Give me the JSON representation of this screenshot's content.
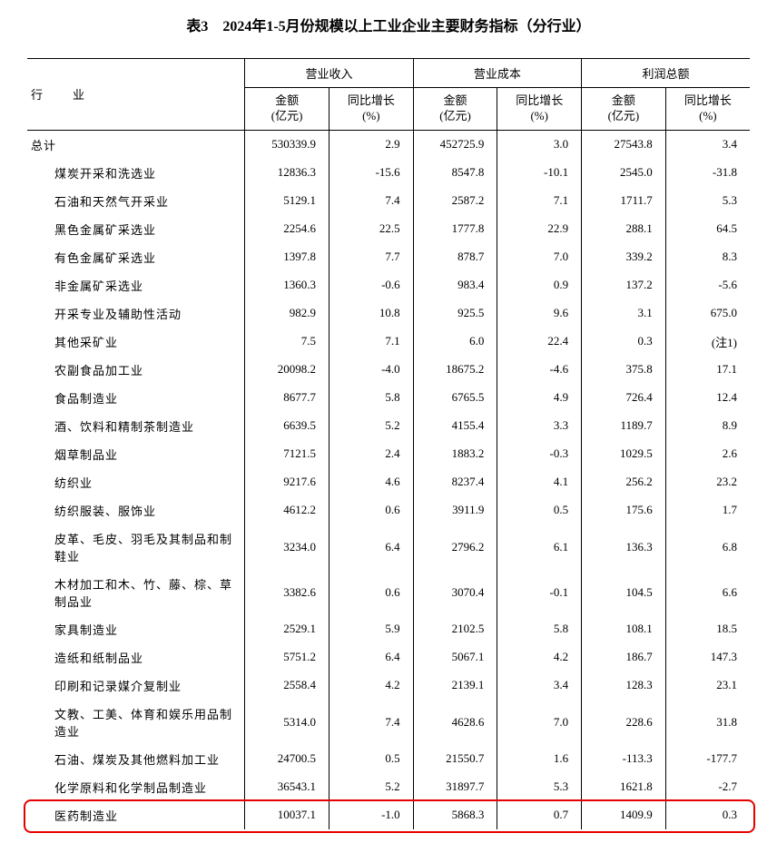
{
  "title": "表3　2024年1-5月份规模以上工业企业主要财务指标（分行业）",
  "header": {
    "industry": "行　业",
    "group1": "营业收入",
    "group2": "营业成本",
    "group3": "利润总额",
    "sub_amount": "金额",
    "sub_amount_unit": "(亿元)",
    "sub_growth": "同比增长",
    "sub_growth_unit": "(%)"
  },
  "rows": [
    {
      "name": "总计",
      "indent": false,
      "r1": "530339.9",
      "r2": "2.9",
      "c1": "452725.9",
      "c2": "3.0",
      "p1": "27543.8",
      "p2": "3.4"
    },
    {
      "name": "煤炭开采和洗选业",
      "indent": true,
      "r1": "12836.3",
      "r2": "-15.6",
      "c1": "8547.8",
      "c2": "-10.1",
      "p1": "2545.0",
      "p2": "-31.8"
    },
    {
      "name": "石油和天然气开采业",
      "indent": true,
      "r1": "5129.1",
      "r2": "7.4",
      "c1": "2587.2",
      "c2": "7.1",
      "p1": "1711.7",
      "p2": "5.3"
    },
    {
      "name": "黑色金属矿采选业",
      "indent": true,
      "r1": "2254.6",
      "r2": "22.5",
      "c1": "1777.8",
      "c2": "22.9",
      "p1": "288.1",
      "p2": "64.5"
    },
    {
      "name": "有色金属矿采选业",
      "indent": true,
      "r1": "1397.8",
      "r2": "7.7",
      "c1": "878.7",
      "c2": "7.0",
      "p1": "339.2",
      "p2": "8.3"
    },
    {
      "name": "非金属矿采选业",
      "indent": true,
      "r1": "1360.3",
      "r2": "-0.6",
      "c1": "983.4",
      "c2": "0.9",
      "p1": "137.2",
      "p2": "-5.6"
    },
    {
      "name": "开采专业及辅助性活动",
      "indent": true,
      "r1": "982.9",
      "r2": "10.8",
      "c1": "925.5",
      "c2": "9.6",
      "p1": "3.1",
      "p2": "675.0"
    },
    {
      "name": "其他采矿业",
      "indent": true,
      "r1": "7.5",
      "r2": "7.1",
      "c1": "6.0",
      "c2": "22.4",
      "p1": "0.3",
      "p2": "(注1)"
    },
    {
      "name": "农副食品加工业",
      "indent": true,
      "r1": "20098.2",
      "r2": "-4.0",
      "c1": "18675.2",
      "c2": "-4.6",
      "p1": "375.8",
      "p2": "17.1"
    },
    {
      "name": "食品制造业",
      "indent": true,
      "r1": "8677.7",
      "r2": "5.8",
      "c1": "6765.5",
      "c2": "4.9",
      "p1": "726.4",
      "p2": "12.4"
    },
    {
      "name": "酒、饮料和精制茶制造业",
      "indent": true,
      "r1": "6639.5",
      "r2": "5.2",
      "c1": "4155.4",
      "c2": "3.3",
      "p1": "1189.7",
      "p2": "8.9"
    },
    {
      "name": "烟草制品业",
      "indent": true,
      "r1": "7121.5",
      "r2": "2.4",
      "c1": "1883.2",
      "c2": "-0.3",
      "p1": "1029.5",
      "p2": "2.6"
    },
    {
      "name": "纺织业",
      "indent": true,
      "r1": "9217.6",
      "r2": "4.6",
      "c1": "8237.4",
      "c2": "4.1",
      "p1": "256.2",
      "p2": "23.2"
    },
    {
      "name": "纺织服装、服饰业",
      "indent": true,
      "r1": "4612.2",
      "r2": "0.6",
      "c1": "3911.9",
      "c2": "0.5",
      "p1": "175.6",
      "p2": "1.7"
    },
    {
      "name": "皮革、毛皮、羽毛及其制品和制鞋业",
      "indent": true,
      "r1": "3234.0",
      "r2": "6.4",
      "c1": "2796.2",
      "c2": "6.1",
      "p1": "136.3",
      "p2": "6.8"
    },
    {
      "name": "木材加工和木、竹、藤、棕、草制品业",
      "indent": true,
      "r1": "3382.6",
      "r2": "0.6",
      "c1": "3070.4",
      "c2": "-0.1",
      "p1": "104.5",
      "p2": "6.6"
    },
    {
      "name": "家具制造业",
      "indent": true,
      "r1": "2529.1",
      "r2": "5.9",
      "c1": "2102.5",
      "c2": "5.8",
      "p1": "108.1",
      "p2": "18.5"
    },
    {
      "name": "造纸和纸制品业",
      "indent": true,
      "r1": "5751.2",
      "r2": "6.4",
      "c1": "5067.1",
      "c2": "4.2",
      "p1": "186.7",
      "p2": "147.3"
    },
    {
      "name": "印刷和记录媒介复制业",
      "indent": true,
      "r1": "2558.4",
      "r2": "4.2",
      "c1": "2139.1",
      "c2": "3.4",
      "p1": "128.3",
      "p2": "23.1"
    },
    {
      "name": "文教、工美、体育和娱乐用品制造业",
      "indent": true,
      "r1": "5314.0",
      "r2": "7.4",
      "c1": "4628.6",
      "c2": "7.0",
      "p1": "228.6",
      "p2": "31.8"
    },
    {
      "name": "石油、煤炭及其他燃料加工业",
      "indent": true,
      "r1": "24700.5",
      "r2": "0.5",
      "c1": "21550.7",
      "c2": "1.6",
      "p1": "-113.3",
      "p2": "-177.7"
    },
    {
      "name": "化学原料和化学制品制造业",
      "indent": true,
      "r1": "36543.1",
      "r2": "5.2",
      "c1": "31897.7",
      "c2": "5.3",
      "p1": "1621.8",
      "p2": "-2.7"
    },
    {
      "name": "医药制造业",
      "indent": true,
      "r1": "10037.1",
      "r2": "-1.0",
      "c1": "5868.3",
      "c2": "0.7",
      "p1": "1409.9",
      "p2": "0.3",
      "highlight": true
    }
  ],
  "highlight_color": "#e60000"
}
